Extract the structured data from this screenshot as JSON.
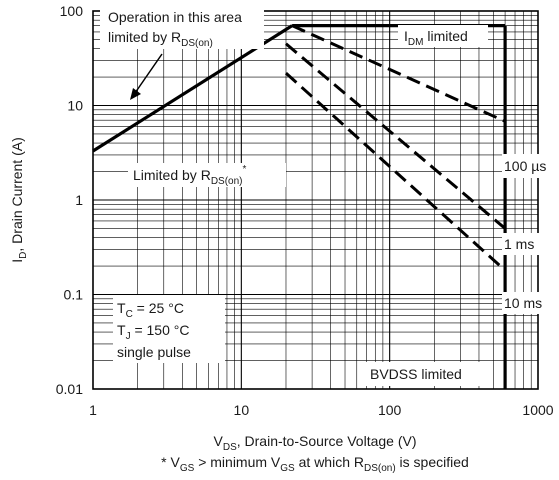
{
  "chart_data": {
    "type": "line",
    "scale": {
      "x": "log",
      "y": "log"
    },
    "xlim": [
      1,
      1000
    ],
    "ylim": [
      0.01,
      100
    ],
    "grid": true,
    "x_ticks": [
      "1",
      "10",
      "100",
      "1000"
    ],
    "y_ticks": [
      "0.01",
      "0.1",
      "1",
      "10",
      "100"
    ],
    "xlabel": {
      "main": "V",
      "sub": "DS",
      "rest": ", Drain-to-Source Voltage (V)"
    },
    "ylabel": {
      "main": "I",
      "sub": "D",
      "rest": ", Drain Current (A)"
    },
    "footnote": {
      "p1": "* V",
      "s1": "GS",
      "p2": " > minimum V",
      "s2": "GS",
      "p3": " at which R",
      "s3": "DS(on)",
      "p4": " is specified"
    },
    "series": [
      {
        "style": "solid",
        "x": [
          1,
          22
        ],
        "y": [
          3.3,
          70
        ]
      },
      {
        "style": "solid",
        "x": [
          22,
          600
        ],
        "y": [
          70,
          70
        ]
      },
      {
        "style": "solid",
        "x": [
          600,
          600
        ],
        "y": [
          70,
          0.01
        ]
      },
      {
        "style": "dashed",
        "x": [
          22,
          600
        ],
        "y": [
          70,
          6.8
        ]
      },
      {
        "style": "dashed",
        "x": [
          20,
          600
        ],
        "y": [
          45,
          0.5
        ]
      },
      {
        "style": "dashed",
        "x": [
          20,
          600
        ],
        "y": [
          22,
          0.18
        ]
      }
    ],
    "annotations": {
      "operation_line1": "Operation in this area",
      "operation_line2_main": "limited by R",
      "operation_line2_sub": "DS(on)",
      "idm_main": "I",
      "idm_sub": "DM",
      "idm_rest": " limited",
      "rds_main": "Limited by R",
      "rds_sub": "DS(on)",
      "rds_sup": "*",
      "t100us": "100 µs",
      "t1ms": "1 ms",
      "t10ms": "10 ms",
      "tc_main": "T",
      "tc_sub": "C",
      "tc_rest": " = 25 °C",
      "tj_main": "T",
      "tj_sub": "J",
      "tj_rest": " = 150 °C",
      "pulse": "single pulse",
      "bvdss": "BVDSS limited"
    }
  }
}
